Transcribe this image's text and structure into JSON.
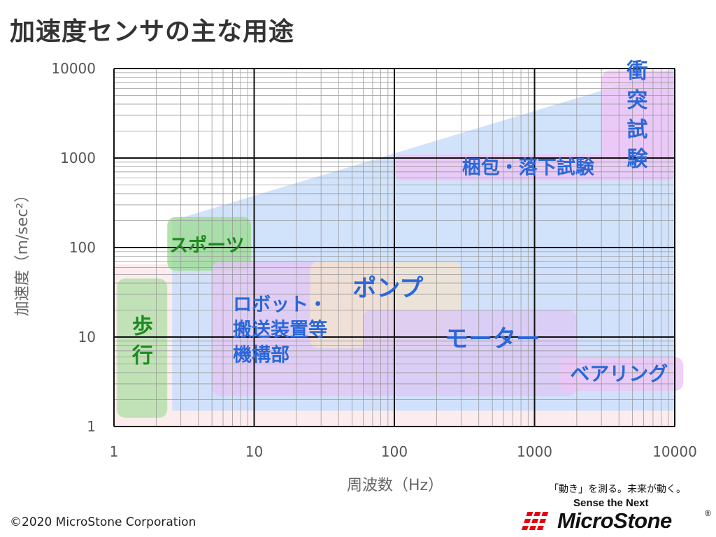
{
  "title": "加速度センサの主な用途",
  "chart_data": {
    "type": "area",
    "title": "加速度センサの主な用途",
    "xlabel": "周波数（Hz）",
    "ylabel": "加速度（m/sec²）",
    "xscale": "log",
    "yscale": "log",
    "xlim": [
      1,
      10000
    ],
    "ylim": [
      1,
      10000
    ],
    "xticks": [
      "1",
      "10",
      "100",
      "1000",
      "10000"
    ],
    "yticks": [
      "1",
      "10",
      "100",
      "1000",
      "10000"
    ],
    "grid": true,
    "envelope": {
      "color": "#cfe0fb",
      "polygon": [
        [
          2.6,
          1.5
        ],
        [
          2.6,
          200
        ],
        [
          10000,
          10000
        ],
        [
          10000,
          1.5
        ]
      ]
    },
    "background_region": {
      "color": "#fdecee",
      "x": [
        1,
        10000
      ],
      "y": [
        1,
        65
      ]
    },
    "regions": [
      {
        "label": "歩行",
        "lines": [
          "歩",
          "行"
        ],
        "x": [
          1.05,
          2.4
        ],
        "y": [
          1.25,
          45
        ],
        "fill": "#b2e0a9",
        "text_color": "#1f8a1f",
        "label_x": 1.6,
        "label_y": 9,
        "vertical": true,
        "font_size": 30
      },
      {
        "label": "スポーツ",
        "lines": [
          "スポーツ"
        ],
        "x": [
          2.4,
          9.5
        ],
        "y": [
          55,
          220
        ],
        "fill": "#9fdc95",
        "text_color": "#1f8a1f",
        "label_x": 4.6,
        "label_y": 105,
        "vertical": false,
        "font_size": 27
      },
      {
        "label": "ロボット・搬送装置等機構部",
        "lines": [
          "ロボット・",
          "搬送装置等",
          "機構部"
        ],
        "x": [
          5,
          100
        ],
        "y": [
          2.2,
          70
        ],
        "fill": "#e3c8f4",
        "text_color": "#2a67d9",
        "label_x": 8.5,
        "label_y": 12,
        "vertical": false,
        "font_size": 27
      },
      {
        "label": "ポンプ",
        "lines": [
          "ポンプ"
        ],
        "x": [
          25,
          300
        ],
        "y": [
          7.5,
          70
        ],
        "fill": "#f2e4cf",
        "text_color": "#2a67d9",
        "label_x": 90,
        "label_y": 35,
        "vertical": false,
        "font_size": 34
      },
      {
        "label": "モーター",
        "lines": [
          "モーター"
        ],
        "x": [
          60,
          2000
        ],
        "y": [
          2.2,
          20
        ],
        "fill": "#dcc8f5",
        "text_color": "#2a67d9",
        "label_x": 500,
        "label_y": 9.5,
        "vertical": false,
        "font_size": 34
      },
      {
        "label": "ベアリング",
        "lines": [
          "ベアリング"
        ],
        "x": [
          1500,
          11500
        ],
        "y": [
          2.5,
          6
        ],
        "fill": "#eec6f6",
        "text_color": "#2a67d9",
        "label_x": 4000,
        "label_y": 3.9,
        "vertical": false,
        "font_size": 28
      },
      {
        "label": "梱包・落下試験",
        "lines": [
          "梱包・落下試験"
        ],
        "x": [
          100,
          10000
        ],
        "y": [
          560,
          1100
        ],
        "fill": "#eec6f6",
        "text_color": "#2a67d9",
        "label_x": 900,
        "label_y": 780,
        "vertical": false,
        "font_size": 27
      },
      {
        "label": "衝突試験",
        "lines": [
          "衝",
          "突",
          "試",
          "験"
        ],
        "x": [
          3000,
          10000
        ],
        "y": [
          950,
          9500
        ],
        "fill": "#f0c3f7",
        "text_color": "#2a67d9",
        "label_x": 5400,
        "label_y": 3000,
        "vertical": true,
        "font_size": 30
      }
    ]
  },
  "footer": {
    "copyright": "©2020 MicroStone Corporation",
    "tagline": "「動き」を測る。未来が動く。",
    "tagline_en": "Sense the Next",
    "logo_text": "MicroStone",
    "logo_reg": "®"
  }
}
